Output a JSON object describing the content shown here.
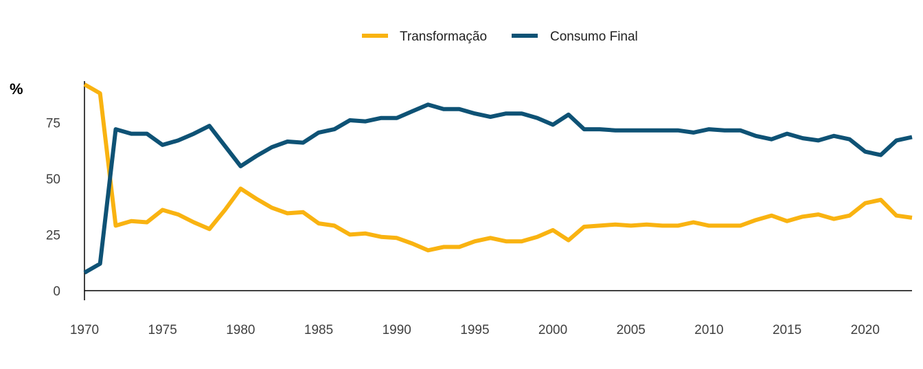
{
  "chart_data": {
    "type": "line",
    "title": "",
    "xlabel": "",
    "ylabel": "%",
    "xlim": [
      1970,
      2023
    ],
    "ylim": [
      0,
      95
    ],
    "yticks": [
      0,
      25,
      50,
      75
    ],
    "xticks": [
      1970,
      1975,
      1980,
      1985,
      1990,
      1995,
      2000,
      2005,
      2010,
      2015,
      2020
    ],
    "grid": false,
    "legend_position": "top-center",
    "x": [
      1970,
      1971,
      1972,
      1973,
      1974,
      1975,
      1976,
      1977,
      1978,
      1979,
      1980,
      1981,
      1982,
      1983,
      1984,
      1985,
      1986,
      1987,
      1988,
      1989,
      1990,
      1991,
      1992,
      1993,
      1994,
      1995,
      1996,
      1997,
      1998,
      1999,
      2000,
      2001,
      2002,
      2003,
      2004,
      2005,
      2006,
      2007,
      2008,
      2009,
      2010,
      2011,
      2012,
      2013,
      2014,
      2015,
      2016,
      2017,
      2018,
      2019,
      2020,
      2021,
      2022,
      2023
    ],
    "series": [
      {
        "name": "Transformação",
        "color": "#F9B311",
        "values": [
          92,
          88,
          29,
          31,
          30.5,
          36,
          34,
          30.5,
          27.5,
          36,
          45.5,
          41,
          37,
          34.5,
          35,
          30,
          29,
          25,
          25.5,
          24,
          23.5,
          21,
          18,
          19.5,
          19.5,
          22,
          23.5,
          22,
          22,
          24,
          27,
          22.5,
          28.5,
          29,
          29.5,
          29,
          29.5,
          29,
          29,
          30.5,
          29,
          29,
          29,
          31.5,
          33.5,
          31,
          33,
          34,
          32,
          33.5,
          39,
          40.5,
          33.5,
          32.5
        ]
      },
      {
        "name": "Consumo Final",
        "color": "#0E5275",
        "values": [
          8,
          12,
          72,
          70,
          70,
          65,
          67,
          70,
          73.5,
          64.5,
          55.5,
          60,
          64,
          66.5,
          66,
          70.5,
          72,
          76,
          75.5,
          77,
          77,
          80,
          83,
          81,
          81,
          79,
          77.5,
          79,
          79,
          77,
          74,
          78.5,
          72,
          72,
          71.5,
          71.5,
          71.5,
          71.5,
          71.5,
          70.5,
          72,
          71.5,
          71.5,
          69,
          67.5,
          70,
          68,
          67,
          69,
          67.5,
          62,
          60.5,
          67,
          68.5
        ]
      }
    ]
  }
}
